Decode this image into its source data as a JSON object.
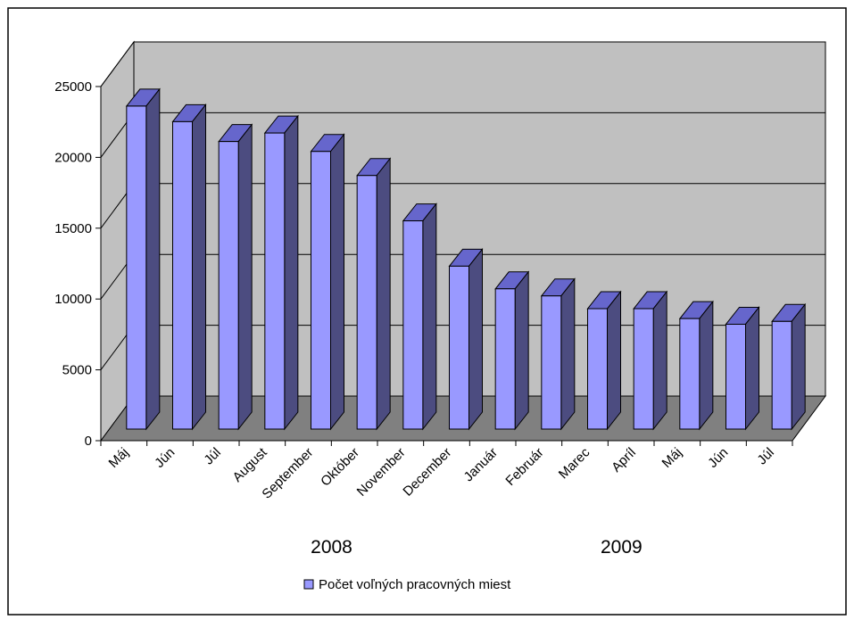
{
  "chart_data": {
    "type": "bar",
    "title": "",
    "xlabel": "",
    "ylabel": "",
    "categories": [
      "Máj",
      "Jún",
      "Júl",
      "August",
      "September",
      "Október",
      "November",
      "December",
      "Január",
      "Február",
      "Marec",
      "Apríl",
      "Máj",
      "Jún",
      "Júl"
    ],
    "series": [
      {
        "name": "Počet voľných pracovných miest",
        "values": [
          22800,
          21700,
          20300,
          20900,
          19600,
          17900,
          14700,
          11500,
          9900,
          9400,
          8500,
          8500,
          7800,
          7400,
          7600
        ]
      }
    ],
    "ylim": [
      0,
      25000
    ],
    "yticks": [
      "0",
      "5000",
      "10000",
      "15000",
      "20000",
      "25000"
    ],
    "year_groups": [
      {
        "label": "2008"
      },
      {
        "label": "2009"
      }
    ],
    "legend_position": "bottom",
    "grid": true,
    "style": "3d-column",
    "colors": {
      "bar_front": "#9999ff",
      "bar_side": "#4c4c80",
      "bar_top": "#6666cc",
      "back_wall": "#c0c0c0",
      "side_wall": "#c0c0c0",
      "floor": "#808080"
    }
  }
}
